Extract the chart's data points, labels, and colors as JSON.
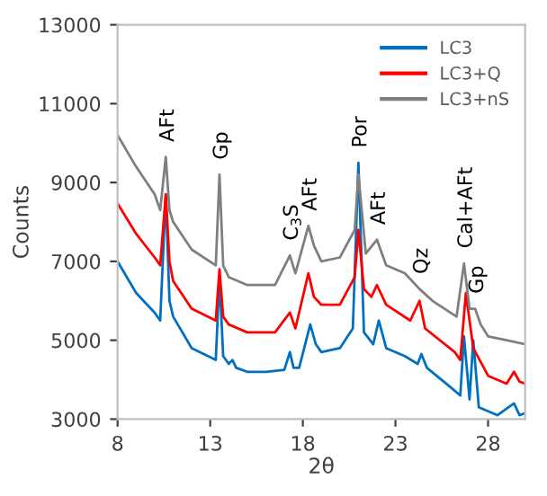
{
  "chart_data": {
    "type": "line",
    "xlabel": "2θ",
    "ylabel": "Counts",
    "xlim": [
      8,
      30
    ],
    "xticks": [
      8,
      13,
      18,
      23,
      28
    ],
    "ylim": [
      3000,
      13000
    ],
    "yticks": [
      3000,
      5000,
      7000,
      9000,
      11000,
      13000
    ],
    "grid": false,
    "legend": "top right",
    "marker": "none",
    "line_style": "solid",
    "series": [
      {
        "name": "LC3",
        "color": "#0070c0",
        "x": [
          8,
          9,
          10,
          10.3,
          10.6,
          10.8,
          11,
          12,
          13.3,
          13.5,
          13.7,
          14,
          14.2,
          14.4,
          15,
          16,
          17,
          17.3,
          17.5,
          17.8,
          18.4,
          18.7,
          19,
          20,
          20.7,
          21,
          21.3,
          21.8,
          22.1,
          22.5,
          23.5,
          24.2,
          24.4,
          24.7,
          26,
          26.5,
          26.7,
          27.0,
          27.2,
          27.5,
          28.5,
          29.4,
          29.7,
          30
        ],
        "values": [
          7000,
          6200,
          5700,
          5500,
          8700,
          6000,
          5600,
          4800,
          4500,
          6600,
          4600,
          4400,
          4500,
          4300,
          4200,
          4200,
          4250,
          4700,
          4300,
          4300,
          5400,
          4900,
          4700,
          4800,
          5300,
          9500,
          5200,
          4900,
          5500,
          4800,
          4600,
          4400,
          4650,
          4300,
          3800,
          3600,
          5100,
          3500,
          5000,
          3300,
          3100,
          3400,
          3100,
          3150
        ]
      },
      {
        "name": "LC3+Q",
        "color": "#ff0000",
        "x": [
          8,
          9,
          10,
          10.3,
          10.6,
          10.8,
          11,
          12,
          13.3,
          13.5,
          13.7,
          14,
          15,
          16.5,
          17.3,
          17.6,
          18.3,
          18.6,
          19,
          20,
          20.8,
          21,
          21.3,
          21.7,
          22,
          22.5,
          23.8,
          24.3,
          24.6,
          26.2,
          26.5,
          26.8,
          27.2,
          28,
          29,
          29.4,
          29.7,
          30
        ],
        "values": [
          8470,
          7700,
          7100,
          6900,
          8700,
          7000,
          6500,
          5800,
          5500,
          6800,
          5600,
          5400,
          5200,
          5200,
          5700,
          5300,
          6700,
          6100,
          5900,
          5900,
          6600,
          7800,
          6300,
          6100,
          6400,
          5900,
          5500,
          6000,
          5300,
          4700,
          4500,
          6200,
          4800,
          4100,
          3900,
          4200,
          3950,
          3900
        ]
      },
      {
        "name": "LC3+nS",
        "color": "#7f7f7f",
        "x": [
          8,
          9,
          10,
          10.3,
          10.6,
          10.8,
          11,
          12,
          13.3,
          13.5,
          13.7,
          14,
          15,
          16.5,
          17.3,
          17.6,
          18.3,
          18.6,
          19,
          20,
          20.8,
          21,
          21.4,
          22,
          22.5,
          23.5,
          24.3,
          25,
          26.3,
          26.7,
          27,
          27.3,
          27.6,
          28,
          29,
          30
        ],
        "values": [
          10200,
          9400,
          8700,
          8300,
          9650,
          8300,
          8000,
          7300,
          6900,
          9200,
          6900,
          6600,
          6400,
          6400,
          7150,
          6700,
          7900,
          7400,
          7000,
          7100,
          7800,
          9200,
          7200,
          7550,
          6900,
          6700,
          6300,
          6000,
          5600,
          6950,
          5800,
          5800,
          5400,
          5100,
          5000,
          4900
        ]
      }
    ],
    "annotations": [
      {
        "text": "AFt",
        "x": 10.6,
        "y": 9650
      },
      {
        "text": "Gp",
        "x": 13.5,
        "y": 9200
      },
      {
        "text": "C$_{3}$S",
        "x": 17.3,
        "y": 7150
      },
      {
        "text": "AFt",
        "x": 18.3,
        "y": 7900
      },
      {
        "text": "Por",
        "x": 21.0,
        "y": 9500
      },
      {
        "text": "AFt",
        "x": 22.0,
        "y": 7550
      },
      {
        "text": "Qz",
        "x": 24.3,
        "y": 6300
      },
      {
        "text": "Cal+AFt",
        "x": 26.7,
        "y": 6950
      },
      {
        "text": "Gp",
        "x": 27.3,
        "y": 5800
      }
    ]
  }
}
